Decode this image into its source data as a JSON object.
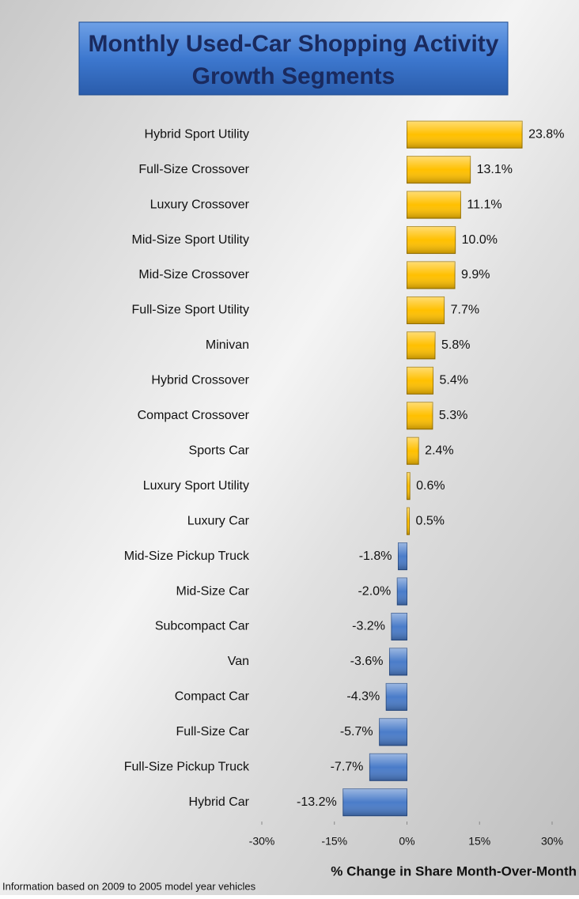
{
  "chart_data": {
    "type": "barh",
    "title": [
      "Monthly Used-Car Shopping Activity",
      "Growth Segments"
    ],
    "xlabel": "% Change in Share Month-Over-Month",
    "footnote": "Information based  on 2009 to 2005 model year vehicles",
    "categories": [
      "Hybrid Sport Utility",
      "Full-Size Crossover",
      "Luxury Crossover",
      "Mid-Size Sport Utility",
      "Mid-Size Crossover",
      "Full-Size Sport Utility",
      "Minivan",
      "Hybrid Crossover",
      "Compact Crossover",
      "Sports Car",
      "Luxury Sport Utility",
      "Luxury Car",
      "Mid-Size Pickup Truck",
      "Mid-Size Car",
      "Subcompact Car",
      "Van",
      "Compact Car",
      "Full-Size Car",
      "Full-Size Pickup Truck",
      "Hybrid Car"
    ],
    "values": [
      23.8,
      13.1,
      11.1,
      10.0,
      9.9,
      7.7,
      5.8,
      5.4,
      5.3,
      2.4,
      0.6,
      0.5,
      -1.8,
      -2.0,
      -3.2,
      -3.6,
      -4.3,
      -5.7,
      -7.7,
      -13.2
    ],
    "value_labels": [
      "23.8%",
      "13.1%",
      "11.1%",
      "10.0%",
      "9.9%",
      "7.7%",
      "5.8%",
      "5.4%",
      "5.3%",
      "2.4%",
      "0.6%",
      "0.5%",
      "-1.8%",
      "-2.0%",
      "-3.2%",
      "-3.6%",
      "-4.3%",
      "-5.7%",
      "-7.7%",
      "-13.2%"
    ],
    "positive_color": "#ffc000",
    "negative_color": "#4a7cc9",
    "xlim": [
      -30,
      30
    ],
    "xticks": [
      {
        "value": -30,
        "label": "-30%"
      },
      {
        "value": -15,
        "label": "-15%"
      },
      {
        "value": 0,
        "label": "0%"
      },
      {
        "value": 15,
        "label": "15%"
      },
      {
        "value": 30,
        "label": "30%"
      }
    ],
    "grid": false
  }
}
